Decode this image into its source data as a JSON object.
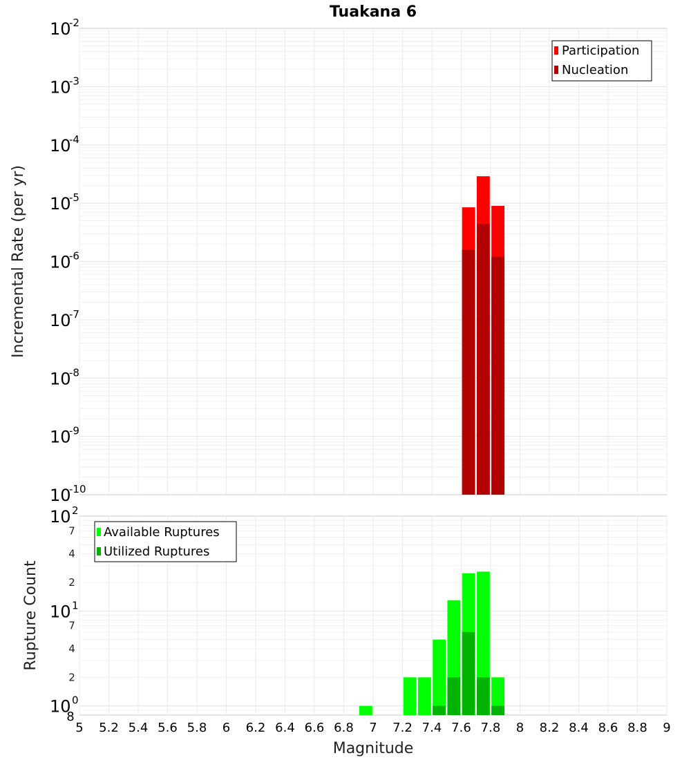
{
  "chart_data": [
    {
      "type": "bar",
      "title": "Tuakana 6",
      "ylabel": "Incremental Rate (per yr)",
      "y_scale": "log",
      "ylim": [
        1e-10,
        0.01
      ],
      "xlim": [
        5,
        9
      ],
      "bin_width": 0.1,
      "x": [
        7.65,
        7.75,
        7.85
      ],
      "series": [
        {
          "name": "Participation",
          "color": "#ff0000",
          "values": [
            8.5e-06,
            2.9e-05,
            9e-06
          ]
        },
        {
          "name": "Nucleation",
          "color": "#b30000",
          "values": [
            1.6e-06,
            4.4e-06,
            1.2e-06
          ]
        }
      ],
      "ytick_labels": [
        "10-2",
        "10-3",
        "10-4",
        "10-5",
        "10-6",
        "10-7",
        "10-8",
        "10-9",
        "10-10"
      ],
      "legend_position": "top-right",
      "grid": true
    },
    {
      "type": "bar",
      "ylabel": "Rupture Count",
      "xlabel": "Magnitude",
      "y_scale": "log",
      "ylim": [
        0.8,
        100
      ],
      "xlim": [
        5,
        9
      ],
      "bin_width": 0.1,
      "x": [
        6.95,
        7.25,
        7.35,
        7.45,
        7.55,
        7.65,
        7.75,
        7.85
      ],
      "series": [
        {
          "name": "Available Ruptures",
          "color": "#00ff00",
          "values": [
            1,
            2,
            2,
            5,
            13,
            25,
            26,
            2
          ]
        },
        {
          "name": "Utilized Ruptures",
          "color": "#00b300",
          "values": [
            0,
            0,
            0,
            1,
            2,
            6,
            2,
            1
          ]
        }
      ],
      "ytick_labels": {
        "decades": [
          "10",
          "10",
          "10"
        ],
        "decade_exponents": [
          "0",
          "1",
          "2"
        ],
        "minor": [
          "2",
          "4",
          "7",
          "2",
          "4",
          "7"
        ],
        "bottom_minor": "8"
      },
      "xtick_labels": [
        "5",
        "5.2",
        "5.4",
        "5.6",
        "5.8",
        "6",
        "6.2",
        "6.4",
        "6.6",
        "6.8",
        "7",
        "7.2",
        "7.4",
        "7.6",
        "7.8",
        "8",
        "8.2",
        "8.4",
        "8.6",
        "8.8",
        "9"
      ],
      "legend_position": "top-left",
      "grid": true
    }
  ]
}
